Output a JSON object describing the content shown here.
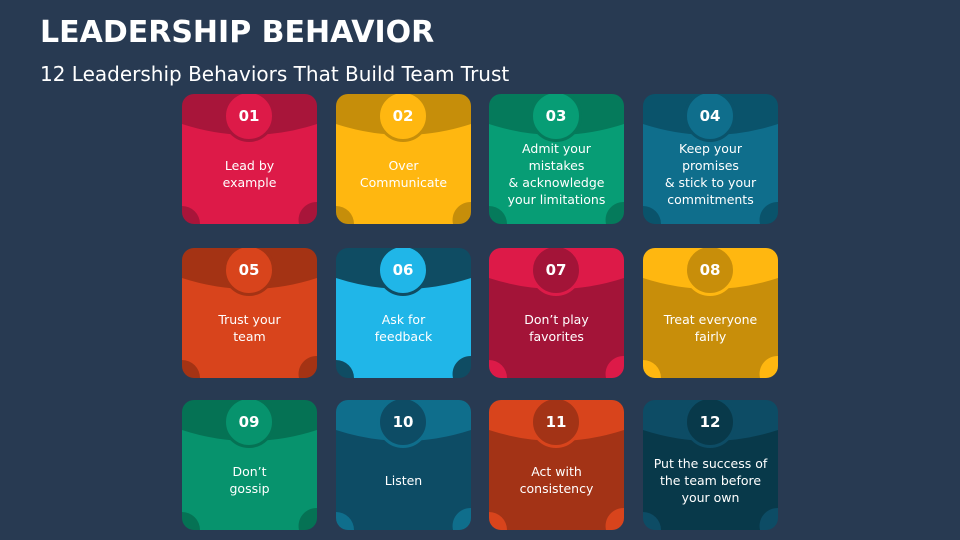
{
  "header": {
    "title": "LEADERSHIP BEHAVIOR",
    "subtitle": "12 Leadership Behaviors That Build Team Trust"
  },
  "cards": [
    {
      "number": "01",
      "text": "Lead by\nexample",
      "main": "#dd1a48",
      "dark": "#a8153a"
    },
    {
      "number": "02",
      "text": "Over\nCommunicate",
      "main": "#ffb710",
      "dark": "#c68e0a"
    },
    {
      "number": "03",
      "text": "Admit your mistakes\n& acknowledge\nyour limitations",
      "main": "#079d75",
      "dark": "#057a5b"
    },
    {
      "number": "04",
      "text": "Keep your promises\n& stick to your\ncommitments",
      "main": "#0f6e8c",
      "dark": "#0a536b"
    },
    {
      "number": "05",
      "text": "Trust your\nteam",
      "main": "#d8441c",
      "dark": "#a43314"
    },
    {
      "number": "06",
      "text": "Ask for\nfeedback",
      "main": "#20b6e8",
      "dark": "#0f4c63"
    },
    {
      "number": "07",
      "text": "Don’t play\nfavorites",
      "main": "#a31438",
      "dark": "#dd1a48"
    },
    {
      "number": "08",
      "text": "Treat everyone\nfairly",
      "main": "#c88e0a",
      "dark": "#ffb710"
    },
    {
      "number": "09",
      "text": "Don’t\ngossip",
      "main": "#07936d",
      "dark": "#057254"
    },
    {
      "number": "10",
      "text": "Listen",
      "main": "#0d4c65",
      "dark": "#0f6e8c"
    },
    {
      "number": "11",
      "text": "Act with\nconsistency",
      "main": "#a33316",
      "dark": "#d8441c"
    },
    {
      "number": "12",
      "text": "Put the success of\nthe team before\nyour own",
      "main": "#08394a",
      "dark": "#0d4c65"
    }
  ]
}
